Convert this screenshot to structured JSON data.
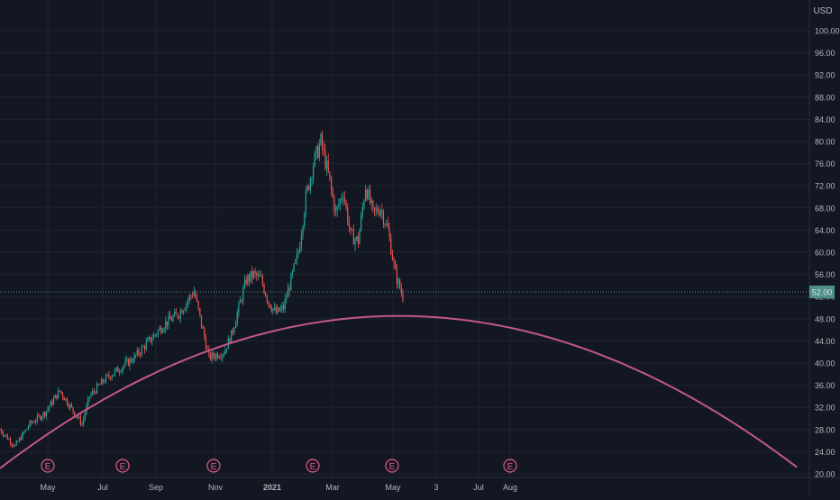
{
  "currency": "USD",
  "price_scale": {
    "ticks": [
      "100.00",
      "96.00",
      "92.00",
      "88.00",
      "84.00",
      "80.00",
      "76.00",
      "72.00",
      "68.00",
      "64.00",
      "60.00",
      "56.00",
      "52.00",
      "48.00",
      "44.00",
      "40.00",
      "36.00",
      "32.00",
      "28.00",
      "24.00",
      "20.00"
    ],
    "last_price_label": "52.00"
  },
  "time_scale": {
    "ticks": [
      {
        "label": "May",
        "bold": false
      },
      {
        "label": "Jul",
        "bold": false
      },
      {
        "label": "Sep",
        "bold": false
      },
      {
        "label": "Nov",
        "bold": false
      },
      {
        "label": "2021",
        "bold": true
      },
      {
        "label": "Mar",
        "bold": false
      },
      {
        "label": "May",
        "bold": false
      },
      {
        "label": "3",
        "bold": false
      },
      {
        "label": "Jul",
        "bold": false
      },
      {
        "label": "Aug",
        "bold": false
      }
    ]
  },
  "earnings_markers": [
    "E",
    "E",
    "E",
    "E",
    "E",
    "E"
  ],
  "colors": {
    "background": "#131722",
    "grid": "#1f2433",
    "up": "#26a69a",
    "down": "#ef5350",
    "arc": "#c2578f",
    "axis_text": "#b2b5be",
    "price_label_bg": "#4f8f8a"
  },
  "chart_data": {
    "type": "candlestick",
    "xlabel": "",
    "ylabel": "",
    "ylim": [
      20,
      102
    ],
    "grid": true,
    "price_path": {
      "description_days": "trading-day index from start",
      "x": [
        0,
        10,
        20,
        30,
        40,
        50,
        55,
        60,
        70,
        80,
        90,
        100,
        110,
        120,
        130,
        140,
        150,
        155,
        160,
        165,
        170,
        175,
        180,
        185,
        190,
        195,
        200,
        205,
        210,
        215,
        220,
        225,
        230,
        235,
        240,
        245,
        250,
        255,
        260,
        265,
        270
      ],
      "y": [
        28,
        25,
        29,
        31,
        35,
        31,
        29,
        34,
        37,
        39,
        41,
        44,
        47,
        49,
        53,
        41,
        42,
        45,
        50,
        55,
        56,
        55,
        51,
        49,
        50,
        55,
        60,
        70,
        76,
        80,
        74,
        67,
        71,
        63,
        62,
        72,
        67,
        68,
        64,
        56,
        52
      ]
    },
    "arc": {
      "x": [
        0,
        270,
        535
      ],
      "y": [
        21,
        48.5,
        21
      ]
    }
  }
}
